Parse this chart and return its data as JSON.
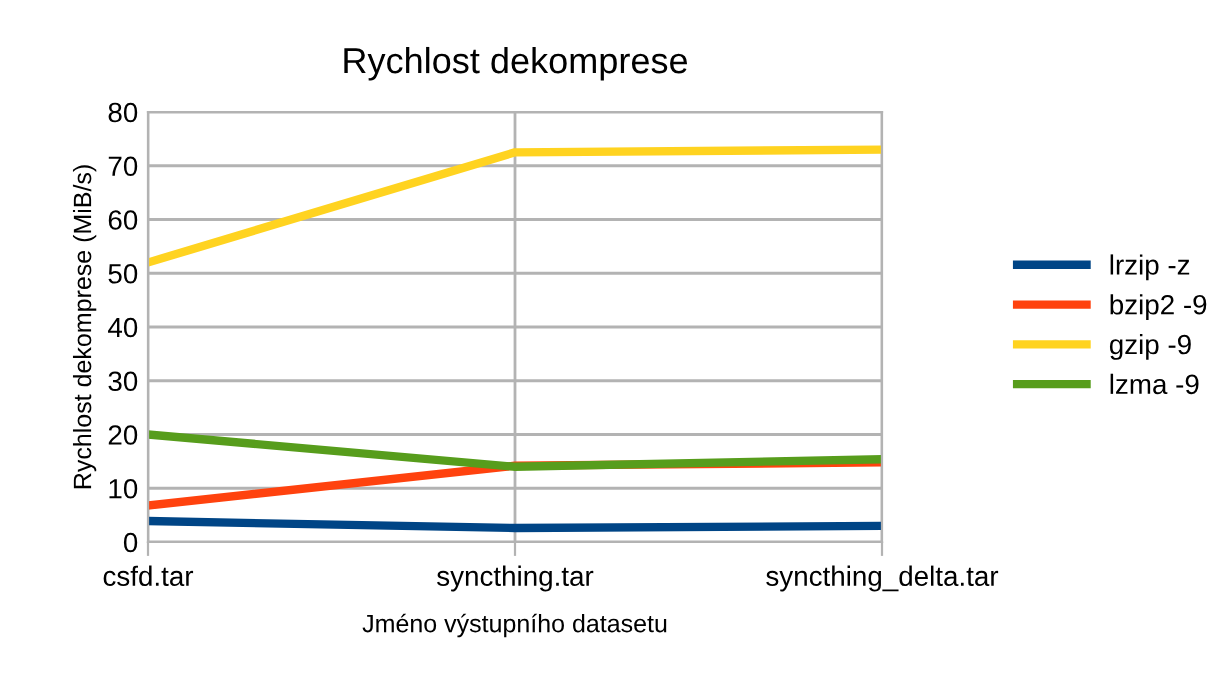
{
  "chart_data": {
    "type": "line",
    "title": "Rychlost dekomprese",
    "xlabel": "Jméno výstupního datasetu",
    "ylabel": "Rychlost dekomprese (MiB/s)",
    "categories": [
      "csfd.tar",
      "syncthing.tar",
      "syncthing_delta.tar"
    ],
    "series": [
      {
        "name": "lrzip -z",
        "color": "#004586",
        "values": [
          3.9,
          2.6,
          3.0
        ]
      },
      {
        "name": "bzip2 -9",
        "color": "#ff420e",
        "values": [
          6.8,
          14.2,
          14.8
        ]
      },
      {
        "name": "gzip -9",
        "color": "#ffd320",
        "values": [
          52,
          72.5,
          73
        ]
      },
      {
        "name": "lzma -9",
        "color": "#579d1c",
        "values": [
          20,
          14,
          15.4
        ]
      }
    ],
    "ylim": [
      0,
      80
    ],
    "yticks": [
      0,
      10,
      20,
      30,
      40,
      50,
      60,
      70,
      80
    ],
    "grid": true,
    "legend": "right",
    "marker": "none",
    "line_style": "solid"
  }
}
